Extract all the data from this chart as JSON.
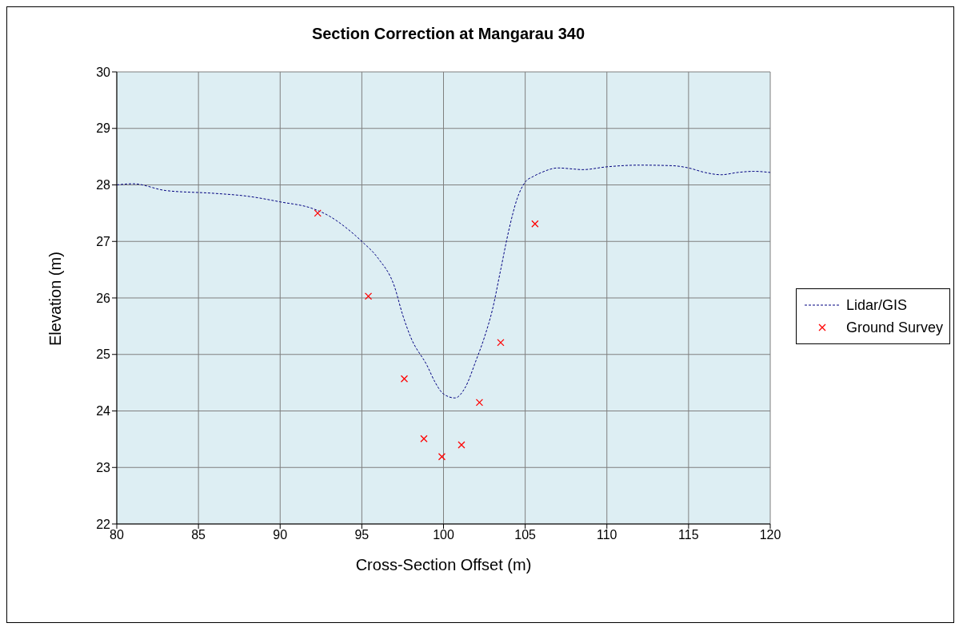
{
  "chart_data": {
    "type": "line",
    "title": "Section Correction at Mangarau 340",
    "xlabel": "Cross-Section Offset (m)",
    "ylabel": "Elevation (m)",
    "xlim": [
      80,
      120
    ],
    "xticks": [
      80,
      85,
      90,
      95,
      100,
      105,
      110,
      115,
      120
    ],
    "ylim": [
      22,
      30
    ],
    "yticks": [
      22,
      23,
      24,
      25,
      26,
      27,
      28,
      29,
      30
    ],
    "grid": true,
    "legend": "right",
    "series": [
      {
        "name": "Lidar/GIS",
        "color": "#000080",
        "marker": "none",
        "line_style": "dashed",
        "x": [
          80,
          81,
          83,
          86,
          88,
          90,
          92,
          93,
          94,
          95,
          96,
          97,
          97.5,
          98,
          99,
          99.5,
          100,
          100.7,
          101.3,
          102,
          102.5,
          103,
          103.5,
          104,
          104.5,
          105,
          105.5,
          106,
          107,
          108,
          108.5,
          110,
          112,
          114,
          115,
          116,
          117,
          118,
          119,
          120
        ],
        "values": [
          28.0,
          28.02,
          27.9,
          27.85,
          27.8,
          27.7,
          27.58,
          27.45,
          27.25,
          27.0,
          26.7,
          26.2,
          25.7,
          25.3,
          24.8,
          24.5,
          24.3,
          24.23,
          24.4,
          24.9,
          25.3,
          25.8,
          26.5,
          27.2,
          27.75,
          28.05,
          28.15,
          28.22,
          28.3,
          28.28,
          28.27,
          28.32,
          28.35,
          28.34,
          28.3,
          28.22,
          28.18,
          28.22,
          28.24,
          28.22
        ]
      },
      {
        "name": "Ground Survey",
        "type": "scatter",
        "color": "#ff0000",
        "marker": "cross",
        "x": [
          92.3,
          95.4,
          97.6,
          98.8,
          99.9,
          101.1,
          102.2,
          103.5,
          105.6
        ],
        "values": [
          27.5,
          26.03,
          24.57,
          23.51,
          23.19,
          23.4,
          24.15,
          25.21,
          27.31
        ]
      }
    ]
  }
}
